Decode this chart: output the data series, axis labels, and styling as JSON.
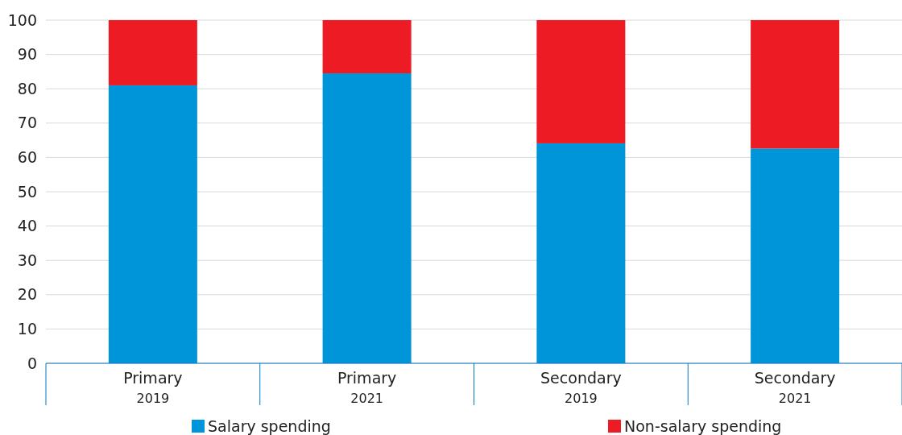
{
  "chart_data": {
    "type": "bar",
    "stacked": true,
    "categories": [
      "Primary\n2019",
      "Primary\n2021",
      "Secondary\n2019",
      "Secondary\n2021"
    ],
    "series": [
      {
        "name": "Salary spending",
        "color": "#0095d9",
        "values": [
          81.0,
          84.5,
          64.1,
          62.6
        ]
      },
      {
        "name": "Non-salary spending",
        "color": "#ed1c24",
        "values": [
          19.0,
          15.5,
          35.9,
          37.4
        ]
      }
    ],
    "ylim": [
      0,
      100
    ],
    "yticks": [
      0,
      10,
      20,
      30,
      40,
      50,
      60,
      70,
      80,
      90,
      100
    ],
    "grid": "y",
    "legend": "bottom"
  }
}
